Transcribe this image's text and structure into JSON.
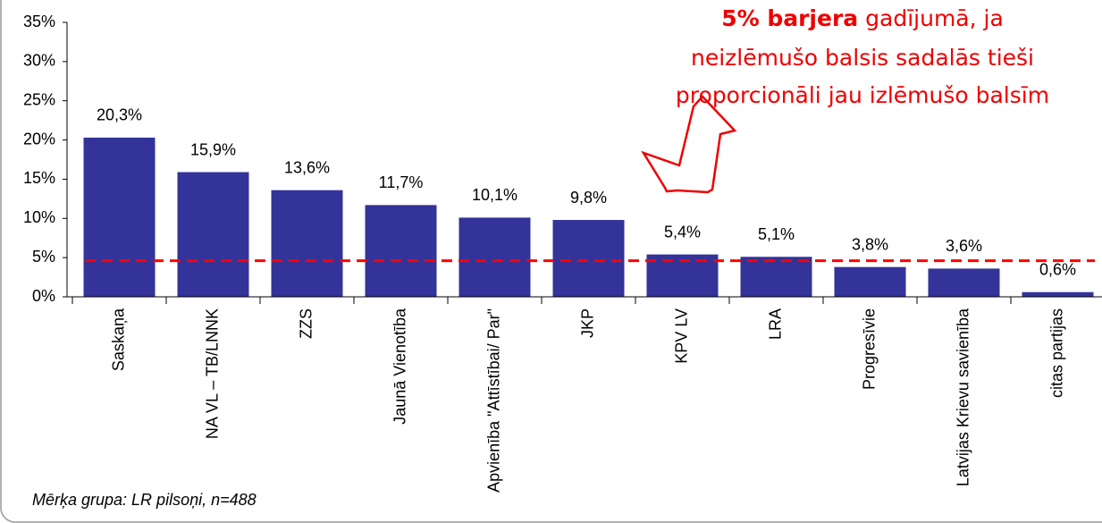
{
  "chart_data": {
    "type": "bar",
    "categories": [
      "Saskaņa",
      "NA VL – TB/LNNK",
      "ZZS",
      "Jaunā Vienotība",
      "Apvienība \"Attīstībai/ Par\"",
      "JKP",
      "KPV LV",
      "LRA",
      "Progresīvie",
      "Latvijas Krievu savienība",
      "citas partijas"
    ],
    "values": [
      20.3,
      15.9,
      13.6,
      11.7,
      10.1,
      9.8,
      5.4,
      5.1,
      3.8,
      3.6,
      0.6
    ],
    "value_labels": [
      "20,3%",
      "15,9%",
      "13,6%",
      "11,7%",
      "10,1%",
      "9,8%",
      "5,4%",
      "5,1%",
      "3,8%",
      "3,6%",
      "0,6%"
    ],
    "color": "#333399",
    "ylim": [
      0,
      35
    ],
    "yticks": [
      {
        "value": 0,
        "label": "0%"
      },
      {
        "value": 5,
        "label": "5%"
      },
      {
        "value": 10,
        "label": "10%"
      },
      {
        "value": 15,
        "label": "15%"
      },
      {
        "value": 20,
        "label": "20%"
      },
      {
        "value": 25,
        "label": "25%"
      },
      {
        "value": 30,
        "label": "30%"
      },
      {
        "value": 35,
        "label": "35%"
      }
    ],
    "threshold_line": {
      "value": 4.6,
      "color": "#ff0000"
    },
    "annotation": {
      "bold": "5% barjera",
      "lines": [
        "gadījumā, ja",
        "neizlēmušo balsis sadalās tieši",
        "proporcionāli jau izlēmušo balsīm"
      ]
    },
    "footnote": "Mērķa grupa: LR pilsoņi, n=488"
  }
}
